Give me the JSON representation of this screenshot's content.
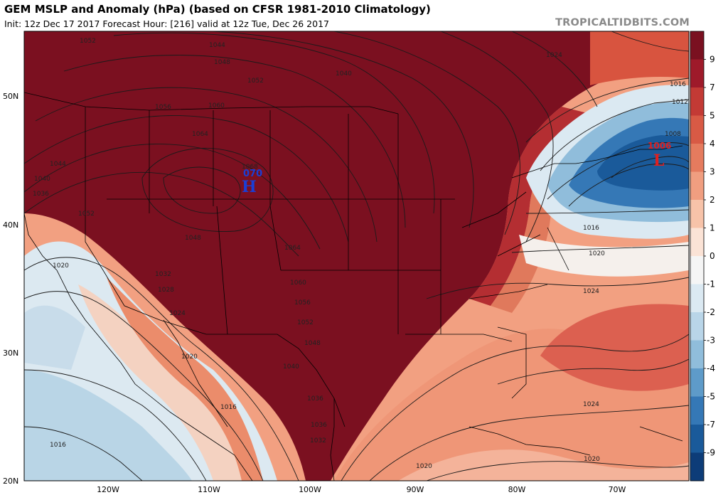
{
  "header": {
    "title": "GEM MSLP and Anomaly (hPa) (based on CFSR 1981-2010 Climatology)",
    "subtitle": "Init: 12z Dec 17 2017   Forecast Hour: [216]   valid at 12z Tue, Dec 26 2017",
    "credit": "TROPICALTIDBITS.COM"
  },
  "colorbar": {
    "labels": [
      "9",
      "7",
      "5",
      "4",
      "3",
      "2",
      "1",
      "0",
      "-1",
      "-2",
      "-3",
      "-4",
      "-5",
      "-7",
      "-9"
    ],
    "colors": [
      "#7a1020",
      "#9e1a2a",
      "#c33a35",
      "#d85a45",
      "#e57b5e",
      "#f09e80",
      "#f7c3a9",
      "#fbe3d6",
      "#f5f5f5",
      "#dbe9f2",
      "#b9d5e8",
      "#90bddb",
      "#5e9bc9",
      "#3578b6",
      "#1a5a9a",
      "#0d3c78"
    ]
  },
  "axes": {
    "lon_labels": [
      "120W",
      "110W",
      "100W",
      "90W",
      "80W",
      "70W"
    ],
    "lat_labels": [
      "50N",
      "40N",
      "30N",
      "20N"
    ]
  },
  "pressure_centers": [
    {
      "symbol": "H",
      "value": "070",
      "color": "#1a3fd6"
    },
    {
      "symbol": "L",
      "value": "1006",
      "color": "#e02020"
    }
  ],
  "isobar_labels": [
    "1052",
    "1044",
    "1048",
    "1052",
    "1040",
    "1060",
    "1056",
    "1064",
    "1044",
    "1040",
    "1036",
    "1052",
    "1048",
    "1068",
    "1032",
    "1028",
    "1024",
    "1064",
    "1060",
    "1056",
    "1052",
    "1048",
    "1040",
    "1036",
    "1036",
    "1032",
    "1020",
    "1016",
    "1016",
    "1024",
    "1020",
    "1020",
    "1016",
    "1024",
    "1020",
    "1020",
    "1024",
    "1008",
    "1012",
    "1016"
  ]
}
